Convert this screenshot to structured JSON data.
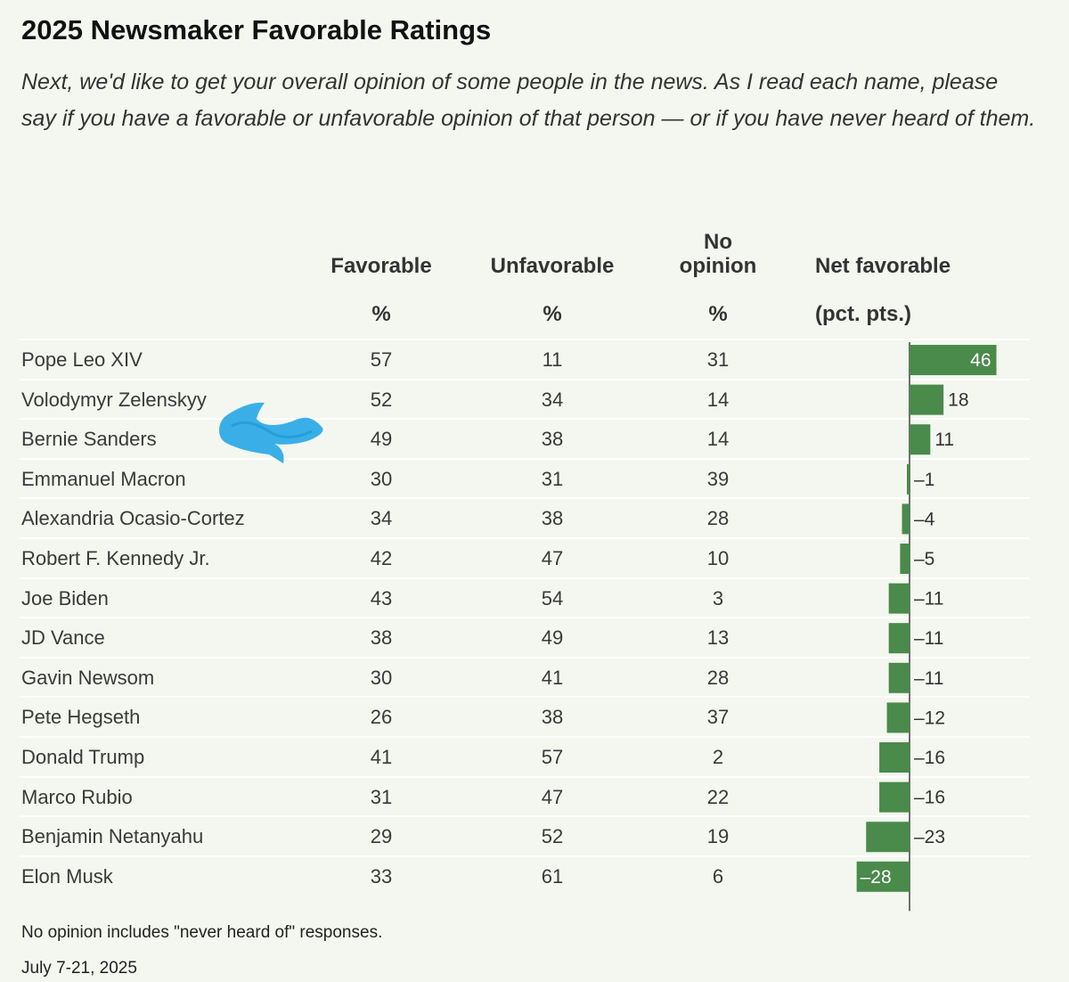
{
  "chart_data": {
    "type": "table",
    "title": "2025 Newsmaker Favorable Ratings",
    "subtitle": "Next, we'd like to get your overall opinion of some people in the news. As I read each name, please say if you have a favorable or unfavorable opinion of that person — or if you have never heard of them.",
    "columns": {
      "favorable": {
        "label": "Favorable",
        "unit": "%"
      },
      "unfavorable": {
        "label": "Unfavorable",
        "unit": "%"
      },
      "no_opinion": {
        "label_line1": "No",
        "label_line2": "opinion",
        "unit": "%"
      },
      "net": {
        "label": "Net favorable",
        "unit": "(pct. pts.)"
      }
    },
    "rows": [
      {
        "name": "Pope Leo XIV",
        "favorable": 57,
        "unfavorable": 11,
        "no_opinion": 31,
        "net": 46,
        "net_label": "46"
      },
      {
        "name": "Volodymyr Zelenskyy",
        "favorable": 52,
        "unfavorable": 34,
        "no_opinion": 14,
        "net": 18,
        "net_label": "18"
      },
      {
        "name": "Bernie Sanders",
        "favorable": 49,
        "unfavorable": 38,
        "no_opinion": 14,
        "net": 11,
        "net_label": "11"
      },
      {
        "name": "Emmanuel Macron",
        "favorable": 30,
        "unfavorable": 31,
        "no_opinion": 39,
        "net": -1,
        "net_label": "–1"
      },
      {
        "name": "Alexandria Ocasio-Cortez",
        "favorable": 34,
        "unfavorable": 38,
        "no_opinion": 28,
        "net": -4,
        "net_label": "–4"
      },
      {
        "name": "Robert F. Kennedy Jr.",
        "favorable": 42,
        "unfavorable": 47,
        "no_opinion": 10,
        "net": -5,
        "net_label": "–5"
      },
      {
        "name": "Joe Biden",
        "favorable": 43,
        "unfavorable": 54,
        "no_opinion": 3,
        "net": -11,
        "net_label": "–11"
      },
      {
        "name": "JD Vance",
        "favorable": 38,
        "unfavorable": 49,
        "no_opinion": 13,
        "net": -11,
        "net_label": "–11"
      },
      {
        "name": "Gavin Newsom",
        "favorable": 30,
        "unfavorable": 41,
        "no_opinion": 28,
        "net": -11,
        "net_label": "–11"
      },
      {
        "name": "Pete Hegseth",
        "favorable": 26,
        "unfavorable": 38,
        "no_opinion": 37,
        "net": -12,
        "net_label": "–12"
      },
      {
        "name": "Donald Trump",
        "favorable": 41,
        "unfavorable": 57,
        "no_opinion": 2,
        "net": -16,
        "net_label": "–16"
      },
      {
        "name": "Marco Rubio",
        "favorable": 31,
        "unfavorable": 47,
        "no_opinion": 22,
        "net": -16,
        "net_label": "–16"
      },
      {
        "name": "Benjamin Netanyahu",
        "favorable": 29,
        "unfavorable": 52,
        "no_opinion": 19,
        "net": -23,
        "net_label": "–23"
      },
      {
        "name": "Elon Musk",
        "favorable": 33,
        "unfavorable": 61,
        "no_opinion": 6,
        "net": -28,
        "net_label": "–28"
      }
    ],
    "bar_color": "#4a8a4a",
    "annotation_color": "#2aa8e6",
    "footnote": "No opinion includes \"never heard of\" responses.",
    "date": "July 7-21, 2025"
  }
}
